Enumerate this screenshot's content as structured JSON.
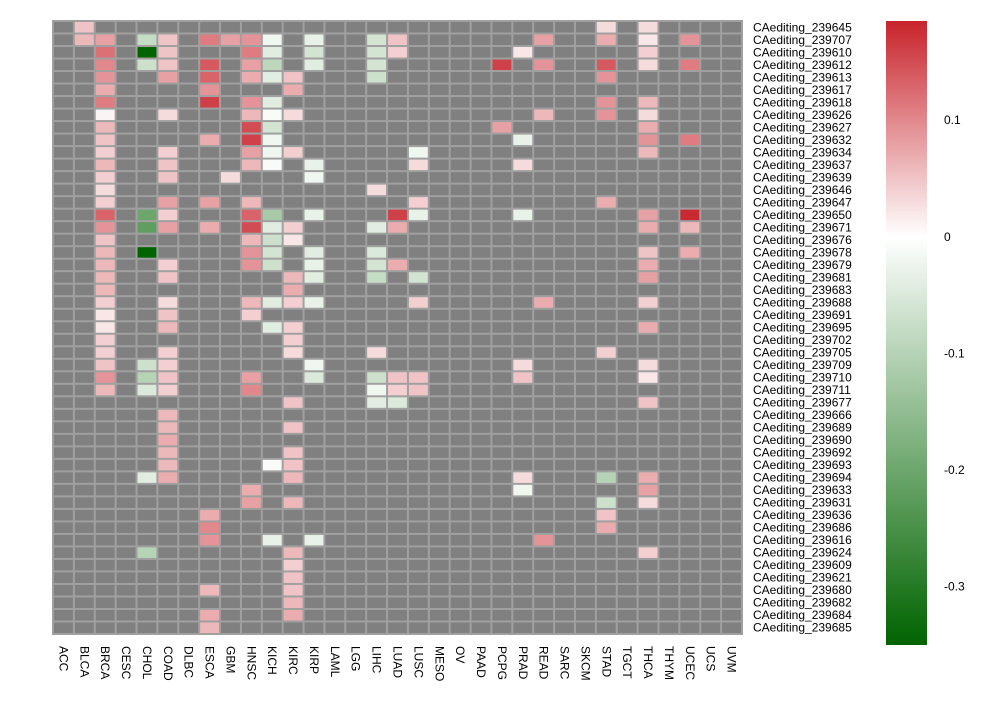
{
  "chart_data": {
    "type": "heatmap",
    "title": "",
    "columns": [
      "ACC",
      "BLCA",
      "BRCA",
      "CESC",
      "CHOL",
      "COAD",
      "DLBC",
      "ESCA",
      "GBM",
      "HNSC",
      "KICH",
      "KIRC",
      "KIRP",
      "LAML",
      "LGG",
      "LIHC",
      "LUAD",
      "LUSC",
      "MESO",
      "OV",
      "PAAD",
      "PCPG",
      "PRAD",
      "READ",
      "SARC",
      "SKCM",
      "STAD",
      "TGCT",
      "THCA",
      "THYM",
      "UCEC",
      "UCS",
      "UVM"
    ],
    "rows": [
      "CAediting_239645",
      "CAediting_239707",
      "CAediting_239610",
      "CAediting_239612",
      "CAediting_239613",
      "CAediting_239617",
      "CAediting_239618",
      "CAediting_239626",
      "CAediting_239627",
      "CAediting_239632",
      "CAediting_239634",
      "CAediting_239637",
      "CAediting_239639",
      "CAediting_239646",
      "CAediting_239647",
      "CAediting_239650",
      "CAediting_239671",
      "CAediting_239676",
      "CAediting_239678",
      "CAediting_239679",
      "CAediting_239681",
      "CAediting_239683",
      "CAediting_239688",
      "CAediting_239691",
      "CAediting_239695",
      "CAediting_239702",
      "CAediting_239705",
      "CAediting_239709",
      "CAediting_239710",
      "CAediting_239711",
      "CAediting_239677",
      "CAediting_239666",
      "CAediting_239689",
      "CAediting_239690",
      "CAediting_239692",
      "CAediting_239693",
      "CAediting_239694",
      "CAediting_239633",
      "CAediting_239631",
      "CAediting_239636",
      "CAediting_239686",
      "CAediting_239616",
      "CAediting_239624",
      "CAediting_239609",
      "CAediting_239621",
      "CAediting_239680",
      "CAediting_239682",
      "CAediting_239684",
      "CAediting_239685"
    ],
    "na_color": "#808080",
    "border_color": "#a0a0a0",
    "colorscale": {
      "low": "#006400",
      "mid": "#ffffff",
      "high": "#c8232b",
      "min": -0.35,
      "max": 0.185
    },
    "colorbar_ticks": [
      {
        "value": 0.1,
        "label": "0.1"
      },
      {
        "value": 0,
        "label": "0"
      },
      {
        "value": -0.1,
        "label": "-0.1"
      },
      {
        "value": -0.2,
        "label": "-0.2"
      },
      {
        "value": -0.3,
        "label": "-0.3"
      }
    ],
    "values": [
      [
        0,
        1,
        0.05
      ],
      [
        0,
        26,
        0.03
      ],
      [
        0,
        28,
        0.03
      ],
      [
        1,
        1,
        0.06
      ],
      [
        1,
        2,
        0.08
      ],
      [
        1,
        4,
        -0.08
      ],
      [
        1,
        5,
        0.05
      ],
      [
        1,
        7,
        0.11
      ],
      [
        1,
        8,
        0.08
      ],
      [
        1,
        9,
        0.09
      ],
      [
        1,
        10,
        -0.02
      ],
      [
        1,
        12,
        -0.03
      ],
      [
        1,
        15,
        -0.06
      ],
      [
        1,
        16,
        0.05
      ],
      [
        1,
        23,
        0.08
      ],
      [
        1,
        26,
        0.07
      ],
      [
        1,
        28,
        0.02
      ],
      [
        1,
        30,
        0.09
      ],
      [
        2,
        2,
        0.12
      ],
      [
        2,
        4,
        -0.35
      ],
      [
        2,
        5,
        0.05
      ],
      [
        2,
        9,
        0.11
      ],
      [
        2,
        10,
        -0.04
      ],
      [
        2,
        12,
        -0.06
      ],
      [
        2,
        15,
        -0.06
      ],
      [
        2,
        16,
        0.04
      ],
      [
        2,
        22,
        0.02
      ],
      [
        2,
        28,
        0.04
      ],
      [
        3,
        2,
        0.1
      ],
      [
        3,
        4,
        -0.07
      ],
      [
        3,
        5,
        0.05
      ],
      [
        3,
        7,
        0.14
      ],
      [
        3,
        9,
        0.08
      ],
      [
        3,
        10,
        -0.09
      ],
      [
        3,
        12,
        -0.04
      ],
      [
        3,
        15,
        -0.06
      ],
      [
        3,
        21,
        0.16
      ],
      [
        3,
        23,
        0.09
      ],
      [
        3,
        26,
        0.14
      ],
      [
        3,
        28,
        0.03
      ],
      [
        3,
        30,
        0.11
      ],
      [
        4,
        2,
        0.09
      ],
      [
        4,
        5,
        0.08
      ],
      [
        4,
        7,
        0.13
      ],
      [
        4,
        9,
        0.07
      ],
      [
        4,
        10,
        -0.04
      ],
      [
        4,
        11,
        0.05
      ],
      [
        4,
        15,
        -0.07
      ],
      [
        4,
        26,
        0.09
      ],
      [
        5,
        2,
        0.07
      ],
      [
        5,
        7,
        0.09
      ],
      [
        5,
        11,
        0.07
      ],
      [
        6,
        2,
        0.11
      ],
      [
        6,
        7,
        0.16
      ],
      [
        6,
        9,
        0.09
      ],
      [
        6,
        10,
        -0.04
      ],
      [
        6,
        26,
        0.09
      ],
      [
        6,
        28,
        0.06
      ],
      [
        7,
        2,
        0.01
      ],
      [
        7,
        5,
        0.03
      ],
      [
        7,
        9,
        0.06
      ],
      [
        7,
        10,
        -0.01
      ],
      [
        7,
        11,
        0.03
      ],
      [
        7,
        23,
        0.06
      ],
      [
        7,
        26,
        0.09
      ],
      [
        7,
        28,
        0.03
      ],
      [
        8,
        2,
        0.06
      ],
      [
        8,
        9,
        0.15
      ],
      [
        8,
        10,
        -0.06
      ],
      [
        8,
        21,
        0.08
      ],
      [
        8,
        28,
        0.07
      ],
      [
        9,
        2,
        0.05
      ],
      [
        9,
        7,
        0.07
      ],
      [
        9,
        9,
        0.16
      ],
      [
        9,
        10,
        -0.02
      ],
      [
        9,
        22,
        -0.03
      ],
      [
        9,
        28,
        0.09
      ],
      [
        9,
        30,
        0.11
      ],
      [
        10,
        2,
        0.04
      ],
      [
        10,
        5,
        0.04
      ],
      [
        10,
        9,
        0.08
      ],
      [
        10,
        10,
        -0.02
      ],
      [
        10,
        11,
        0.04
      ],
      [
        10,
        17,
        -0.02
      ],
      [
        10,
        28,
        0.06
      ],
      [
        11,
        2,
        0.06
      ],
      [
        11,
        5,
        0.05
      ],
      [
        11,
        9,
        0.06
      ],
      [
        11,
        10,
        -0.01
      ],
      [
        11,
        12,
        -0.03
      ],
      [
        11,
        17,
        0.03
      ],
      [
        11,
        22,
        0.03
      ],
      [
        12,
        2,
        0.04
      ],
      [
        12,
        5,
        0.05
      ],
      [
        12,
        8,
        0.03
      ],
      [
        12,
        12,
        -0.02
      ],
      [
        13,
        2,
        0.03
      ],
      [
        13,
        15,
        0.03
      ],
      [
        14,
        2,
        0.04
      ],
      [
        14,
        5,
        0.08
      ],
      [
        14,
        7,
        0.08
      ],
      [
        14,
        9,
        0.06
      ],
      [
        14,
        17,
        0.04
      ],
      [
        14,
        26,
        0.07
      ],
      [
        15,
        2,
        0.13
      ],
      [
        15,
        4,
        -0.2
      ],
      [
        15,
        5,
        0.04
      ],
      [
        15,
        9,
        0.13
      ],
      [
        15,
        10,
        -0.12
      ],
      [
        15,
        12,
        -0.03
      ],
      [
        15,
        16,
        0.16
      ],
      [
        15,
        17,
        -0.03
      ],
      [
        15,
        22,
        -0.03
      ],
      [
        15,
        28,
        0.08
      ],
      [
        15,
        30,
        0.18
      ],
      [
        16,
        2,
        0.09
      ],
      [
        16,
        4,
        -0.22
      ],
      [
        16,
        5,
        0.08
      ],
      [
        16,
        7,
        0.07
      ],
      [
        16,
        9,
        0.15
      ],
      [
        16,
        10,
        -0.04
      ],
      [
        16,
        11,
        0.04
      ],
      [
        16,
        15,
        -0.04
      ],
      [
        16,
        16,
        0.07
      ],
      [
        16,
        28,
        0.07
      ],
      [
        16,
        30,
        0.06
      ],
      [
        17,
        2,
        0.05
      ],
      [
        17,
        9,
        0.06
      ],
      [
        17,
        10,
        -0.07
      ],
      [
        17,
        11,
        0.02
      ],
      [
        18,
        2,
        0.06
      ],
      [
        18,
        4,
        -0.35
      ],
      [
        18,
        9,
        0.09
      ],
      [
        18,
        10,
        -0.06
      ],
      [
        18,
        12,
        -0.04
      ],
      [
        18,
        15,
        -0.05
      ],
      [
        18,
        28,
        0.05
      ],
      [
        18,
        30,
        0.07
      ],
      [
        19,
        2,
        0.06
      ],
      [
        19,
        5,
        0.04
      ],
      [
        19,
        9,
        0.09
      ],
      [
        19,
        10,
        -0.07
      ],
      [
        19,
        12,
        -0.03
      ],
      [
        19,
        15,
        -0.06
      ],
      [
        19,
        16,
        0.07
      ],
      [
        19,
        28,
        0.07
      ],
      [
        20,
        2,
        0.06
      ],
      [
        20,
        5,
        0.05
      ],
      [
        20,
        11,
        0.06
      ],
      [
        20,
        12,
        -0.04
      ],
      [
        20,
        15,
        -0.08
      ],
      [
        20,
        17,
        -0.06
      ],
      [
        20,
        28,
        0.08
      ],
      [
        21,
        2,
        0.06
      ],
      [
        21,
        11,
        0.07
      ],
      [
        22,
        2,
        0.04
      ],
      [
        22,
        5,
        0.03
      ],
      [
        22,
        9,
        0.06
      ],
      [
        22,
        10,
        -0.04
      ],
      [
        22,
        11,
        0.04
      ],
      [
        22,
        12,
        -0.03
      ],
      [
        22,
        17,
        0.04
      ],
      [
        22,
        23,
        0.07
      ],
      [
        22,
        28,
        0.04
      ],
      [
        23,
        2,
        0.02
      ],
      [
        23,
        5,
        0.05
      ],
      [
        23,
        9,
        0.04
      ],
      [
        24,
        2,
        0.02
      ],
      [
        24,
        5,
        0.06
      ],
      [
        24,
        10,
        -0.04
      ],
      [
        24,
        11,
        0.04
      ],
      [
        24,
        28,
        0.07
      ],
      [
        25,
        2,
        0.04
      ],
      [
        25,
        11,
        0.04
      ],
      [
        26,
        2,
        0.04
      ],
      [
        26,
        5,
        0.04
      ],
      [
        26,
        11,
        0.03
      ],
      [
        26,
        15,
        0.03
      ],
      [
        26,
        26,
        0.04
      ],
      [
        27,
        2,
        0.05
      ],
      [
        27,
        4,
        -0.07
      ],
      [
        27,
        5,
        0.04
      ],
      [
        27,
        12,
        -0.02
      ],
      [
        27,
        22,
        0.03
      ],
      [
        27,
        28,
        0.03
      ],
      [
        28,
        2,
        0.09
      ],
      [
        28,
        4,
        -0.1
      ],
      [
        28,
        5,
        0.05
      ],
      [
        28,
        9,
        0.08
      ],
      [
        28,
        12,
        -0.05
      ],
      [
        28,
        15,
        -0.07
      ],
      [
        28,
        16,
        0.05
      ],
      [
        28,
        17,
        0.05
      ],
      [
        28,
        22,
        0.05
      ],
      [
        28,
        28,
        0.02
      ],
      [
        29,
        2,
        0.06
      ],
      [
        29,
        4,
        -0.05
      ],
      [
        29,
        5,
        0.04
      ],
      [
        29,
        9,
        0.1
      ],
      [
        29,
        15,
        -0.02
      ],
      [
        29,
        16,
        0.04
      ],
      [
        29,
        17,
        0.05
      ],
      [
        30,
        11,
        0.05
      ],
      [
        30,
        15,
        -0.04
      ],
      [
        30,
        16,
        -0.05
      ],
      [
        30,
        28,
        0.05
      ],
      [
        31,
        5,
        0.06
      ],
      [
        32,
        5,
        0.06
      ],
      [
        32,
        11,
        0.05
      ],
      [
        33,
        5,
        0.07
      ],
      [
        34,
        5,
        0.06
      ],
      [
        34,
        11,
        0.05
      ],
      [
        35,
        5,
        0.06
      ],
      [
        35,
        10,
        -0.01
      ],
      [
        35,
        11,
        0.05
      ],
      [
        36,
        4,
        -0.04
      ],
      [
        36,
        5,
        0.07
      ],
      [
        36,
        11,
        0.06
      ],
      [
        36,
        22,
        0.03
      ],
      [
        36,
        26,
        -0.1
      ],
      [
        36,
        28,
        0.07
      ],
      [
        37,
        9,
        0.07
      ],
      [
        37,
        22,
        -0.02
      ],
      [
        37,
        28,
        0.08
      ],
      [
        38,
        9,
        0.08
      ],
      [
        38,
        11,
        0.06
      ],
      [
        38,
        26,
        -0.07
      ],
      [
        38,
        28,
        0.03
      ],
      [
        39,
        7,
        0.07
      ],
      [
        39,
        26,
        0.05
      ],
      [
        40,
        7,
        0.1
      ],
      [
        40,
        26,
        0.07
      ],
      [
        41,
        7,
        0.09
      ],
      [
        41,
        10,
        -0.03
      ],
      [
        41,
        12,
        -0.03
      ],
      [
        41,
        23,
        0.09
      ],
      [
        42,
        4,
        -0.1
      ],
      [
        42,
        11,
        0.06
      ],
      [
        42,
        28,
        0.04
      ],
      [
        43,
        11,
        0.04
      ],
      [
        44,
        11,
        0.05
      ],
      [
        45,
        7,
        0.06
      ],
      [
        45,
        11,
        0.05
      ],
      [
        46,
        11,
        0.06
      ],
      [
        47,
        7,
        0.07
      ],
      [
        47,
        11,
        0.07
      ],
      [
        48,
        7,
        0.06
      ]
    ]
  }
}
